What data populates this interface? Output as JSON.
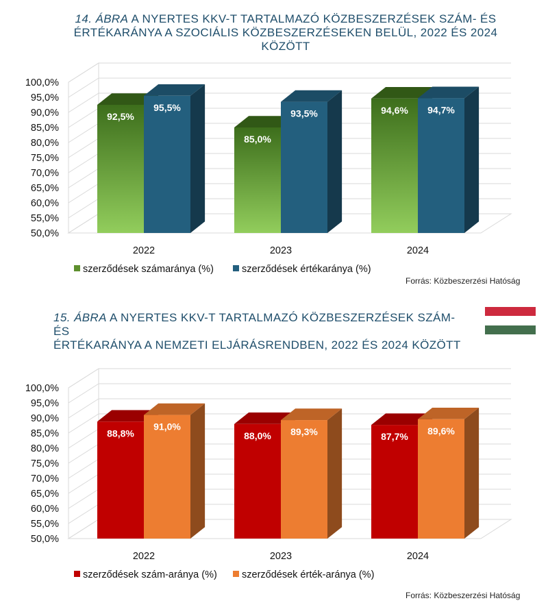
{
  "figures": [
    {
      "title_num": "14. ábra",
      "title_line1": " a nyertes KKV-t tartalmazó közbeszerzések szám- és",
      "title_line2": "értékaránya a szociális közbeszerzéseken belül, 2022 és 2024 között",
      "source": "Forrás: Közbeszerzési Hatóság"
    },
    {
      "title_num": "15. ábra",
      "title_line1": " a nyertes KKV-t tartalmazó közbeszerzések szám-  és",
      "title_line2": "értékaránya a nemzeti eljárásrendben, 2022 és 2024 között",
      "source": "Forrás: Közbeszerzési Hatóság"
    }
  ],
  "flag_colors": [
    "#cd2a3e",
    "#ffffff",
    "#436f4d"
  ],
  "chart_data": [
    {
      "type": "bar",
      "style": "3d-clustered-column",
      "categories": [
        "2022",
        "2023",
        "2024"
      ],
      "yticks": [
        "50,0%",
        "55,0%",
        "60,0%",
        "65,0%",
        "70,0%",
        "75,0%",
        "80,0%",
        "85,0%",
        "90,0%",
        "95,0%",
        "100,0%"
      ],
      "ylim": [
        50,
        100
      ],
      "grid": true,
      "legend_position": "bottom-left",
      "series": [
        {
          "name": "szerződések számaránya (%)",
          "values": [
            92.5,
            85.0,
            94.6
          ],
          "labels": [
            "92,5%",
            "85,0%",
            "94,6%"
          ],
          "color": "#5e8f2e",
          "gradient": [
            "#3d6e1c",
            "#92cd5c"
          ]
        },
        {
          "name": "szerződések értékaránya (%)",
          "values": [
            95.5,
            93.5,
            94.7
          ],
          "labels": [
            "95,5%",
            "93,5%",
            "94,7%"
          ],
          "color": "#235f7e"
        }
      ]
    },
    {
      "type": "bar",
      "style": "3d-clustered-column",
      "categories": [
        "2022",
        "2023",
        "2024"
      ],
      "yticks": [
        "50,0%",
        "55,0%",
        "60,0%",
        "65,0%",
        "70,0%",
        "75,0%",
        "80,0%",
        "85,0%",
        "90,0%",
        "95,0%",
        "100,0%"
      ],
      "ylim": [
        50,
        100
      ],
      "grid": true,
      "legend_position": "bottom-left",
      "series": [
        {
          "name": "szerződések szám-aránya (%)",
          "values": [
            88.8,
            88.0,
            87.7
          ],
          "labels": [
            "88,8%",
            "88,0%",
            "87,7%"
          ],
          "color": "#c00000"
        },
        {
          "name": "szerződések érték-aránya (%)",
          "values": [
            91.0,
            89.3,
            89.6
          ],
          "labels": [
            "91,0%",
            "89,3%",
            "89,6%"
          ],
          "color": "#ed7d31"
        }
      ]
    }
  ]
}
